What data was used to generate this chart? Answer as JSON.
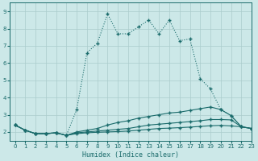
{
  "xlabel": "Humidex (Indice chaleur)",
  "xlim": [
    -0.5,
    23
  ],
  "ylim": [
    1.5,
    9.5
  ],
  "yticks": [
    2,
    3,
    4,
    5,
    6,
    7,
    8,
    9
  ],
  "xticks": [
    0,
    1,
    2,
    3,
    4,
    5,
    6,
    7,
    8,
    9,
    10,
    11,
    12,
    13,
    14,
    15,
    16,
    17,
    18,
    19,
    20,
    21,
    22,
    23
  ],
  "bg_color": "#cce8e8",
  "grid_color": "#aacccc",
  "line_color": "#1a6b6b",
  "line1_x": [
    0,
    1,
    2,
    3,
    4,
    5,
    6,
    7,
    8,
    9,
    10,
    11,
    12,
    13,
    14,
    15,
    16,
    17,
    18,
    19,
    20,
    21,
    22,
    23
  ],
  "line1_y": [
    2.4,
    2.1,
    1.9,
    1.9,
    1.95,
    1.8,
    3.3,
    6.6,
    7.15,
    8.85,
    7.7,
    7.7,
    8.1,
    8.5,
    7.7,
    8.5,
    7.3,
    7.4,
    5.1,
    4.5,
    3.3,
    2.95,
    2.3,
    2.2
  ],
  "line2_x": [
    0,
    1,
    2,
    3,
    4,
    5,
    6,
    7,
    8,
    9,
    10,
    11,
    12,
    13,
    14,
    15,
    16,
    17,
    18,
    19,
    20,
    21,
    22,
    23
  ],
  "line2_y": [
    2.4,
    2.1,
    1.9,
    1.9,
    1.95,
    1.8,
    2.0,
    2.1,
    2.2,
    2.4,
    2.55,
    2.65,
    2.8,
    2.9,
    3.0,
    3.1,
    3.15,
    3.25,
    3.35,
    3.45,
    3.3,
    2.95,
    2.3,
    2.2
  ],
  "line3_x": [
    0,
    1,
    2,
    3,
    4,
    5,
    6,
    7,
    8,
    9,
    10,
    11,
    12,
    13,
    14,
    15,
    16,
    17,
    18,
    19,
    20,
    21,
    22,
    23
  ],
  "line3_y": [
    2.4,
    2.1,
    1.9,
    1.9,
    1.95,
    1.8,
    1.95,
    2.0,
    2.05,
    2.1,
    2.15,
    2.2,
    2.3,
    2.4,
    2.45,
    2.5,
    2.55,
    2.6,
    2.65,
    2.72,
    2.72,
    2.7,
    2.3,
    2.2
  ],
  "line4_x": [
    0,
    1,
    2,
    3,
    4,
    5,
    6,
    7,
    8,
    9,
    10,
    11,
    12,
    13,
    14,
    15,
    16,
    17,
    18,
    19,
    20,
    21,
    22,
    23
  ],
  "line4_y": [
    2.4,
    2.1,
    1.9,
    1.9,
    1.95,
    1.8,
    1.9,
    1.95,
    1.98,
    2.0,
    2.02,
    2.05,
    2.1,
    2.15,
    2.2,
    2.22,
    2.25,
    2.28,
    2.32,
    2.36,
    2.38,
    2.35,
    2.3,
    2.2
  ]
}
